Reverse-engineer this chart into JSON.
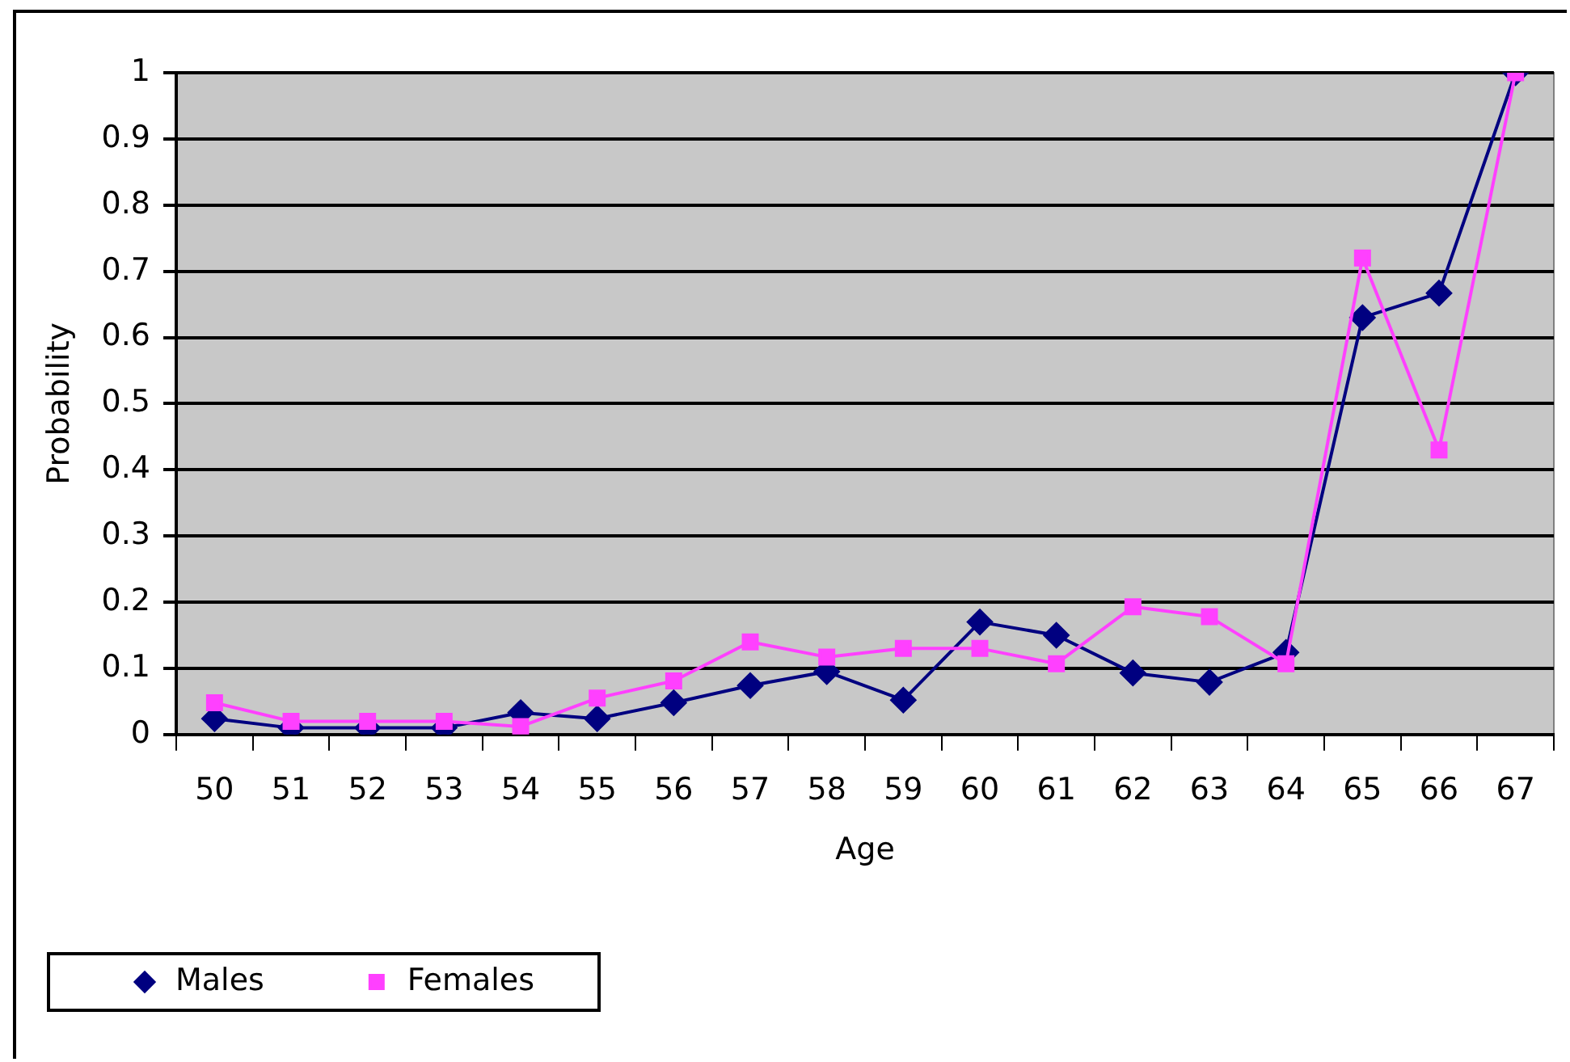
{
  "chart_data": {
    "type": "line",
    "xlabel": "Age",
    "ylabel": "Probability",
    "categories": [
      "50",
      "51",
      "52",
      "53",
      "54",
      "55",
      "56",
      "57",
      "58",
      "59",
      "60",
      "61",
      "62",
      "63",
      "64",
      "65",
      "66",
      "67"
    ],
    "series": [
      {
        "name": "Males",
        "color": "#000080",
        "marker": "diamond",
        "values": [
          0.024,
          0.01,
          0.01,
          0.01,
          0.033,
          0.024,
          0.048,
          0.074,
          0.095,
          0.052,
          0.17,
          0.15,
          0.093,
          0.079,
          0.124,
          0.63,
          0.667,
          1
        ]
      },
      {
        "name": "Females",
        "color": "#ff40ff",
        "marker": "square",
        "values": [
          0.048,
          0.02,
          0.02,
          0.02,
          0.012,
          0.055,
          0.081,
          0.14,
          0.117,
          0.13,
          0.13,
          0.107,
          0.193,
          0.178,
          0.107,
          0.72,
          0.43,
          1
        ]
      }
    ],
    "ylim": [
      0,
      1
    ],
    "yticks": [
      0,
      0.1,
      0.2,
      0.3,
      0.4,
      0.5,
      0.6,
      0.7,
      0.8,
      0.9,
      1
    ],
    "grid": "y",
    "legend": "bottom"
  }
}
